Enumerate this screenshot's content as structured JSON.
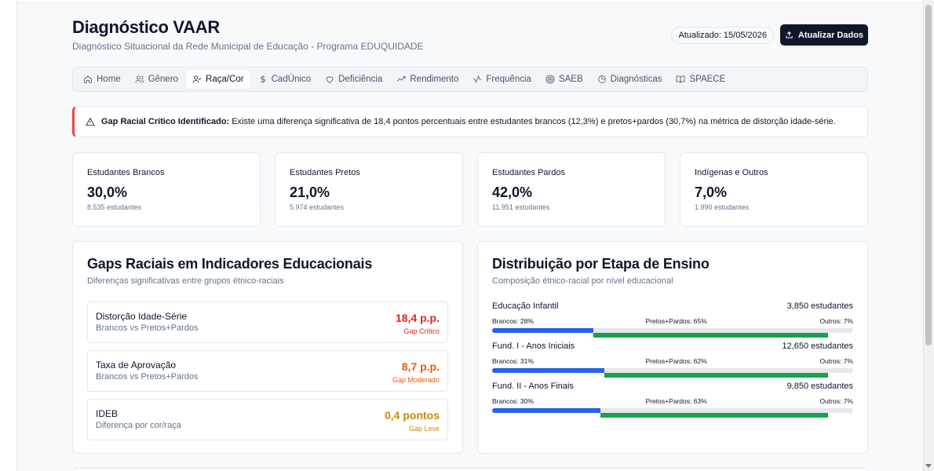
{
  "header": {
    "title": "Diagnóstico VAAR",
    "subtitle": "Diagnóstico Situacional da Rede Municipal de Educação - Programa EDUQUIDADE",
    "updated": "Atualizado: 15/05/2026",
    "refresh_label": "Atualizar Dados"
  },
  "tabs": [
    {
      "label": "Home",
      "icon": "home-icon"
    },
    {
      "label": "Gênero",
      "icon": "users-icon"
    },
    {
      "label": "Raça/Cor",
      "icon": "user-check-icon",
      "active": true
    },
    {
      "label": "CadÚnico",
      "icon": "dollar-icon"
    },
    {
      "label": "Deficiência",
      "icon": "heart-icon"
    },
    {
      "label": "Rendimento",
      "icon": "trending-up-icon"
    },
    {
      "label": "Frequência",
      "icon": "activity-icon"
    },
    {
      "label": "SAEB",
      "icon": "target-icon"
    },
    {
      "label": "Diagnósticas",
      "icon": "pie-chart-icon"
    },
    {
      "label": "SPAECE",
      "icon": "book-icon"
    }
  ],
  "alert": {
    "title": "Gap Racial Crítico Identificado:",
    "text": "Existe uma diferença significativa de 18,4 pontos percentuais entre estudantes brancos (12,3%) e pretos+pardos (30,7%) na métrica de distorção idade-série."
  },
  "stats": [
    {
      "label": "Estudantes Brancos",
      "value": "30,0%",
      "sub": "8.535 estudantes"
    },
    {
      "label": "Estudantes Pretos",
      "value": "21,0%",
      "sub": "5.974 estudantes"
    },
    {
      "label": "Estudantes Pardos",
      "value": "42,0%",
      "sub": "11.951 estudantes"
    },
    {
      "label": "Indígenas e Outros",
      "value": "7,0%",
      "sub": "1.990 estudantes"
    }
  ],
  "gaps_panel": {
    "title": "Gaps Raciais em Indicadores Educacionais",
    "subtitle": "Diferenças significativas entre grupos étnico-raciais",
    "items": [
      {
        "name": "Distorção Idade-Série",
        "desc": "Brancos vs Pretos+Pardos",
        "value": "18,4 p.p.",
        "level": "Gap Crítico",
        "color": "#dc2626"
      },
      {
        "name": "Taxa de Aprovação",
        "desc": "Brancos vs Pretos+Pardos",
        "value": "8,7 p.p.",
        "level": "Gap Moderado",
        "color": "#ea580c"
      },
      {
        "name": "IDEB",
        "desc": "Diferença por cor/raça",
        "value": "0,4 pontos",
        "level": "Gap Leve",
        "color": "#ca8a04"
      }
    ]
  },
  "dist_panel": {
    "title": "Distribuição por Etapa de Ensino",
    "subtitle": "Composição étnico-racial por nível educacional",
    "items": [
      {
        "stage": "Educação Infantil",
        "total": "3,850 estudantes",
        "brancos_label": "Brancos: 28%",
        "pp_label": "Pretos+Pardos: 65%",
        "outros_label": "Outros: 7%",
        "brancos": 28,
        "pp": 65,
        "outros": 7
      },
      {
        "stage": "Fund. I - Anos Iniciais",
        "total": "12,650 estudantes",
        "brancos_label": "Brancos: 31%",
        "pp_label": "Pretos+Pardos: 62%",
        "outros_label": "Outros: 7%",
        "brancos": 31,
        "pp": 62,
        "outros": 7
      },
      {
        "stage": "Fund. II - Anos Finais",
        "total": "9,850 estudantes",
        "brancos_label": "Brancos: 30%",
        "pp_label": "Pretos+Pardos: 63%",
        "outros_label": "Outros: 7%",
        "brancos": 30,
        "pp": 63,
        "outros": 7
      }
    ]
  },
  "colors": {
    "brancos": "#2563eb",
    "pretos_pardos": "#16a34a",
    "alert": "#ef4444"
  }
}
